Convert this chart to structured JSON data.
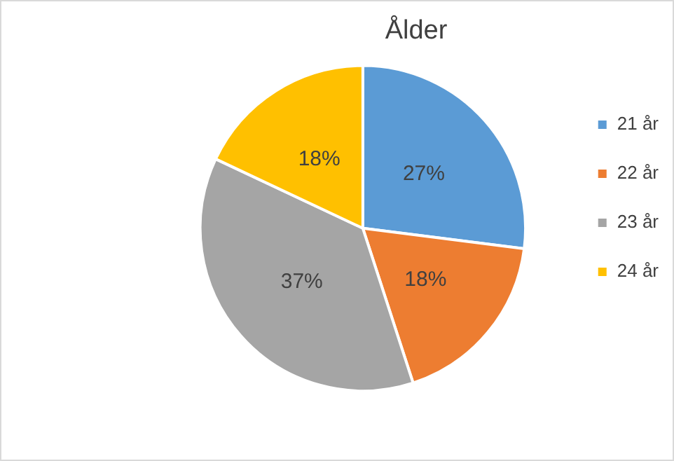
{
  "chart_data": {
    "type": "pie",
    "title": "Ålder",
    "categories": [
      "21 år",
      "22 år",
      "23 år",
      "24 år"
    ],
    "values": [
      27,
      18,
      37,
      18
    ],
    "colors": [
      "#5b9bd5",
      "#ed7d31",
      "#a5a5a5",
      "#ffc000"
    ],
    "value_labels": [
      "27%",
      "18%",
      "37%",
      "18%"
    ],
    "legend": "right"
  }
}
